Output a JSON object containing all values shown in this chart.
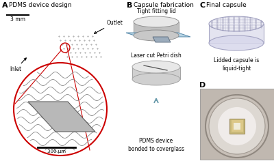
{
  "bg_color": "#ffffff",
  "text_color": "#000000",
  "panel_A_title": "PDMS device design",
  "panel_B_title": "Capsule fabrication",
  "panel_C_title": "Final capsule",
  "panel_B_label1": "Tight fitting lid",
  "panel_B_label2": "Laser cut Petri dish",
  "panel_B_label3": "PDMS device\nbonded to coverglass",
  "panel_C_label": "Lidded capsule is\nliquid-tight",
  "scale_bar_3mm": "3 mm",
  "scale_bar_300um": "300 μm",
  "outlet_label": "Outlet",
  "inlet_label": "Inlet",
  "red": "#cc0000",
  "gray1": "#c8c8c8",
  "gray2": "#b8b8b8",
  "gray3": "#e0e0e0",
  "gray4": "#d0d0d0",
  "teal_arrow": "#7799aa",
  "chip_gray": "#b0b0b0",
  "wave_gray": "#909090",
  "lid_top": "#e8e8e8",
  "lid_side": "#c0c0c0",
  "petri_top": "#e8e8e8",
  "petri_side": "#d0d0d0",
  "cov_color": "#b8d0e0",
  "capsule_edge": "#aaaacc",
  "capsule_fill": "#e8e8f0",
  "photo_bg": "#b8b0a8",
  "photo_dish": "#d0c8c0",
  "photo_inner": "#e8e0d8",
  "photo_bright": "#f4f0ec",
  "photo_dev": "#c8b888",
  "photo_dev_inner": "#d8c898"
}
